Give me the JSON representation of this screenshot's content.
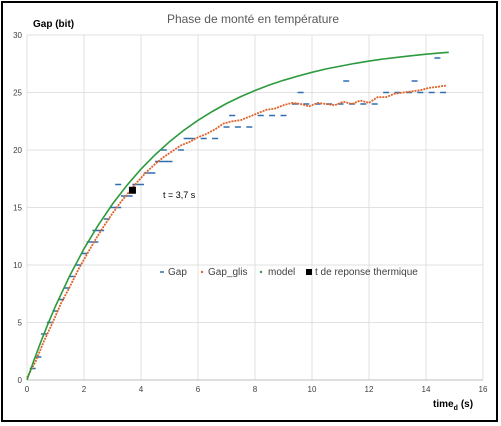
{
  "chart_data": {
    "type": "scatter",
    "title": "Phase de monté en température",
    "ylabel": "Gap (bit)",
    "xlabel_main": "time",
    "xlabel_sub": "d",
    "xlabel_unit": "(s)",
    "xlim": [
      0,
      16
    ],
    "ylim": [
      0,
      30
    ],
    "x_ticks": [
      0,
      2,
      4,
      6,
      8,
      10,
      12,
      14,
      16
    ],
    "y_ticks": [
      0,
      5,
      10,
      15,
      20,
      25,
      30
    ],
    "grid": true,
    "legend_position": "center",
    "series": [
      {
        "name": "Gap",
        "color": "#2f6fb0",
        "marker": "dash",
        "x": [
          0.2,
          0.4,
          0.6,
          0.8,
          1.0,
          1.2,
          1.4,
          1.6,
          1.8,
          2.0,
          2.2,
          2.4,
          2.6,
          2.8,
          3.0,
          3.2,
          3.4,
          3.6,
          3.8,
          4.0,
          4.2,
          4.4,
          4.6,
          4.8,
          5.0,
          5.4,
          5.8,
          6.2,
          6.6,
          7.0,
          7.4,
          7.8,
          8.2,
          8.6,
          9.0,
          9.4,
          9.8,
          10.2,
          10.6,
          11.0,
          11.4,
          11.8,
          12.2,
          12.6,
          13.0,
          13.4,
          13.8,
          14.2,
          14.6,
          3.2,
          4.8,
          7.2,
          9.6,
          11.2,
          13.6,
          14.4,
          2.4,
          5.6
        ],
        "y": [
          1,
          2,
          4,
          5,
          6,
          7,
          8,
          9,
          10,
          11,
          12,
          12,
          13,
          14,
          15,
          15,
          16,
          16,
          17,
          17,
          18,
          18,
          19,
          19,
          19,
          20,
          21,
          21,
          21,
          22,
          22,
          22,
          23,
          23,
          23,
          24,
          24,
          24,
          24,
          24,
          24,
          24,
          24,
          25,
          25,
          25,
          25,
          25,
          25,
          17,
          20,
          23,
          25,
          26,
          26,
          28,
          13,
          21
        ]
      },
      {
        "name": "Gap_glis",
        "color": "#e0622a",
        "marker": "line",
        "x": [
          0,
          0.3,
          0.6,
          0.9,
          1.2,
          1.5,
          1.8,
          2.1,
          2.4,
          2.7,
          3.0,
          3.3,
          3.6,
          3.9,
          4.2,
          4.5,
          4.8,
          5.1,
          5.4,
          5.7,
          6.0,
          6.3,
          6.6,
          6.9,
          7.2,
          7.5,
          7.8,
          8.1,
          8.4,
          8.7,
          9.0,
          9.3,
          9.6,
          9.9,
          10.2,
          10.5,
          10.8,
          11.1,
          11.4,
          11.7,
          12.0,
          12.3,
          12.6,
          12.9,
          13.2,
          13.5,
          13.8,
          14.1,
          14.4,
          14.7
        ],
        "y": [
          0.2,
          1.6,
          3.4,
          5.0,
          6.7,
          8.1,
          9.6,
          10.9,
          12.2,
          13.4,
          14.5,
          15.5,
          16.4,
          17.3,
          18.1,
          18.8,
          19.4,
          19.9,
          20.4,
          20.7,
          21.1,
          21.4,
          21.8,
          22.3,
          22.5,
          22.6,
          22.9,
          23.2,
          23.5,
          23.6,
          23.9,
          24.1,
          24.0,
          23.8,
          24.1,
          24.0,
          23.9,
          24.2,
          24.0,
          24.3,
          24.1,
          24.6,
          24.6,
          24.9,
          25.0,
          25.1,
          25.2,
          25.4,
          25.5,
          25.6
        ]
      },
      {
        "name": "model",
        "color": "#2e9a3e",
        "marker": "line",
        "x": [
          0,
          0.25,
          0.5,
          0.75,
          1,
          1.5,
          2,
          2.5,
          3,
          3.5,
          4,
          4.5,
          5,
          5.5,
          6,
          6.5,
          7,
          7.5,
          8,
          8.5,
          9,
          9.5,
          10,
          10.5,
          11,
          11.5,
          12,
          12.5,
          13,
          13.5,
          14,
          14.5,
          14.8
        ],
        "y": [
          0,
          1.76,
          3.42,
          4.97,
          6.43,
          9.08,
          11.41,
          13.47,
          15.3,
          16.91,
          18.34,
          19.6,
          20.72,
          21.71,
          22.58,
          23.35,
          24.04,
          24.64,
          25.17,
          25.65,
          26.06,
          26.43,
          26.76,
          27.05,
          27.3,
          27.53,
          27.73,
          27.91,
          28.06,
          28.2,
          28.33,
          28.44,
          28.5
        ]
      },
      {
        "name": "t de reponse thermique",
        "color": "#000000",
        "marker": "square",
        "x": [
          3.7
        ],
        "y": [
          16.5
        ]
      }
    ],
    "annotations": [
      {
        "text": "t = 3,7 s",
        "x": 3.7,
        "y": 16.5
      }
    ]
  }
}
